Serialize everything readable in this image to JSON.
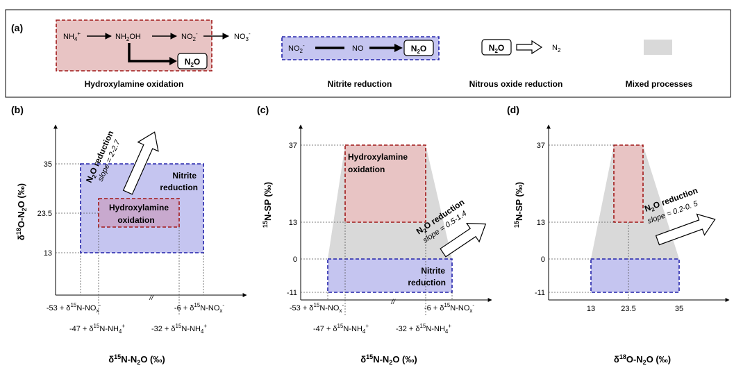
{
  "legend": {
    "label": "(a)",
    "hydroxylamine": {
      "nh4": "NH",
      "nh4_sub": "4",
      "nh4_sup": "+",
      "nh2oh_a": "NH",
      "nh2oh_sub": "2",
      "nh2oh_b": "OH",
      "no2": "NO",
      "no2_sub": "2",
      "no2_sup": "-",
      "no3": "NO",
      "no3_sub": "3",
      "no3_sup": "-",
      "n2o_a": "N",
      "n2o_sub": "2",
      "n2o_b": "O",
      "caption": "Hydroxylamine oxidation"
    },
    "nitrite": {
      "no2": "NO",
      "no2_sub": "2",
      "no2_sup": "-",
      "no": "NO",
      "n2o_a": "N",
      "n2o_sub": "2",
      "n2o_b": "O",
      "caption": "Nitrite reduction"
    },
    "nitrous": {
      "n2o_a": "N",
      "n2o_sub": "2",
      "n2o_b": "O",
      "n2_a": "N",
      "n2_sub": "2",
      "caption": "Nitrous oxide reduction"
    },
    "mixed": {
      "caption": "Mixed processes"
    },
    "colors": {
      "red_fill": "#e8c4c4",
      "red_stroke": "#a01818",
      "blue_fill": "#c5c5f0",
      "blue_stroke": "#2222aa",
      "gray": "#d9d9d9"
    }
  },
  "panel_b": {
    "label": "(b)",
    "ylabel": {
      "delta": "δ",
      "sup": "18",
      "rest": "O-N",
      "sub": "2",
      "tail": "O (‰)"
    },
    "xlabel": {
      "delta": "δ",
      "sup": "15",
      "rest": "N-N",
      "sub": "2",
      "tail": "O (‰)"
    },
    "yticks": [
      "35",
      "23.5",
      "13"
    ],
    "break_mark": "//",
    "xticks": {
      "t1": {
        "pre": "-53 + δ",
        "sup": "15",
        "mid": "N-NO",
        "sub": "x",
        "supend": "-"
      },
      "t2": {
        "pre": "-6 + δ",
        "sup": "15",
        "mid": "N-NO",
        "sub": "x",
        "supend": "-"
      },
      "t3": {
        "pre": "-47 + δ",
        "sup": "15",
        "mid": "N-NH",
        "sub": "4",
        "supend": "+"
      },
      "t4": {
        "pre": "-32 + δ",
        "sup": "15",
        "mid": "N-NH",
        "sub": "4",
        "supend": "+"
      }
    },
    "nitrite_label": [
      "Nitrite",
      "reduction"
    ],
    "hydroxylamine_label": [
      "Hydroxylamine",
      "oxidation"
    ],
    "arrow": {
      "title_a": "N",
      "title_sub": "2",
      "title_b": "O reduction",
      "slope": "slope = 2-2.7"
    }
  },
  "panel_c": {
    "label": "(c)",
    "ylabel": {
      "sup": "15",
      "rest": "N-SP (‰)"
    },
    "xlabel": {
      "delta": "δ",
      "sup": "15",
      "rest": "N-N",
      "sub": "2",
      "tail": "O (‰)"
    },
    "yticks": [
      "37",
      "13",
      "0",
      "-11"
    ],
    "break_mark": "//",
    "xticks": {
      "t1": {
        "pre": "-53 + δ",
        "sup": "15",
        "mid": "N-NO",
        "sub": "x",
        "supend": "-"
      },
      "t2": {
        "pre": "-6 + δ",
        "sup": "15",
        "mid": "N-NO",
        "sub": "x",
        "supend": "-"
      },
      "t3": {
        "pre": "-47 + δ",
        "sup": "15",
        "mid": "N-NH",
        "sub": "4",
        "supend": "+"
      },
      "t4": {
        "pre": "-32 + δ",
        "sup": "15",
        "mid": "N-NH",
        "sub": "4",
        "supend": "+"
      }
    },
    "hydroxylamine_label": [
      "Hydroxylamine",
      "oxidation"
    ],
    "nitrite_label": [
      "Nitrite",
      "reduction"
    ],
    "arrow": {
      "title_a": "N",
      "title_sub": "2",
      "title_b": "O reduction",
      "slope": "slope = 0.5-1.4"
    }
  },
  "panel_d": {
    "label": "(d)",
    "ylabel": {
      "sup": "15",
      "rest": "N-SP (‰)"
    },
    "xlabel": {
      "delta": "δ",
      "sup": "18",
      "rest": "O-N",
      "sub": "2",
      "tail": "O (‰)"
    },
    "yticks": [
      "37",
      "13",
      "0",
      "-11"
    ],
    "xticks": [
      "13",
      "23.5",
      "35"
    ],
    "arrow": {
      "title_a": "N",
      "title_sub": "2",
      "title_b": "O reduction",
      "slope": "slope = 0.2-0. 5"
    }
  }
}
